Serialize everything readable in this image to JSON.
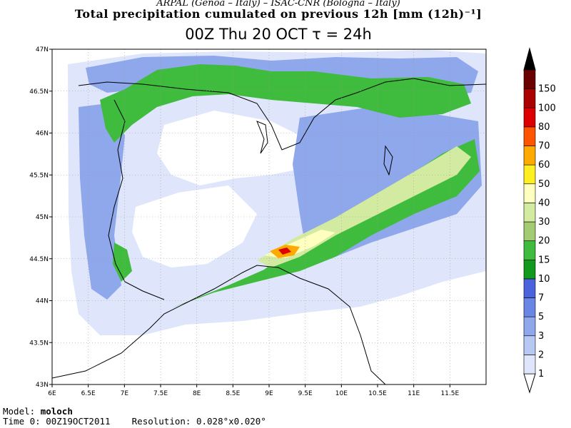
{
  "header": {
    "credits": "ARPAL (Genoa – Italy)  –  ISAC-CNR (Bologna – Italy)",
    "title": "Total precipitation cumulated on previous 12h [mm (12h)⁻¹]",
    "subtitle": "00Z Thu 20 OCT  τ = 24h"
  },
  "map": {
    "lon_range": [
      6.0,
      12.0
    ],
    "lat_range": [
      43.0,
      47.0
    ],
    "lon_ticks": [
      "6E",
      "6.5E",
      "7E",
      "7.5E",
      "8E",
      "8.5E",
      "9E",
      "9.5E",
      "10E",
      "10.5E",
      "11E",
      "11.5E"
    ],
    "lat_ticks": [
      "43N",
      "43.5N",
      "44N",
      "44.5N",
      "45N",
      "45.5N",
      "46N",
      "46.5N",
      "47N"
    ],
    "grid": "dotted"
  },
  "legend": {
    "levels": [
      "1",
      "2",
      "3",
      "5",
      "7",
      "10",
      "15",
      "20",
      "30",
      "40",
      "50",
      "60",
      "70",
      "80",
      "100",
      "150"
    ],
    "colors": [
      "#dfe6fb",
      "#b7c8f4",
      "#8fa8ec",
      "#6a86e4",
      "#4a63dc",
      "#119a1e",
      "#3fbb3d",
      "#a3cc72",
      "#d2eba0",
      "#ffffbf",
      "#ffee22",
      "#ffaa00",
      "#ff5500",
      "#dd0000",
      "#aa0000",
      "#6b0000"
    ],
    "over_color": "#000000",
    "under_color": "#ffffff"
  },
  "footer": {
    "model_label": "Model:",
    "model_value": "moloch",
    "time_label": "Time 0:",
    "time_value": "00Z19OCT2011",
    "resolution_label": "Resolution:",
    "resolution_value": "0.028°x0.020°"
  }
}
